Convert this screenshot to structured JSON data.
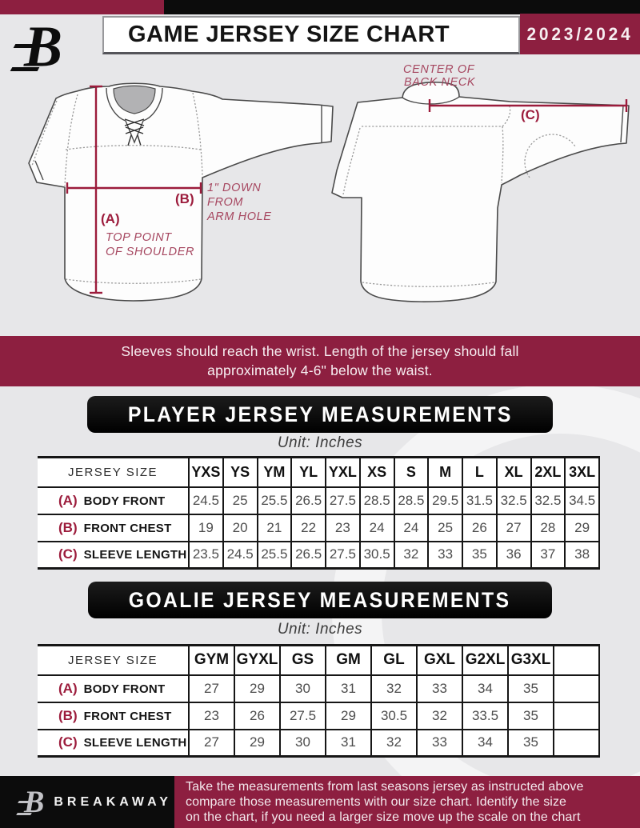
{
  "header": {
    "logo": "B",
    "title": "GAME JERSEY SIZE CHART",
    "season": "2023/2024"
  },
  "diagram": {
    "front": {
      "a_label": "(A)",
      "a_caption_1": "TOP POINT",
      "a_caption_2": "OF SHOULDER",
      "b_label": "(B)",
      "b_caption_1": "1\" DOWN",
      "b_caption_2": "FROM",
      "b_caption_3": "ARM HOLE"
    },
    "back": {
      "c_label": "(C)",
      "c_caption_1": "CENTER OF",
      "c_caption_2": "BACK NECK"
    }
  },
  "banner": {
    "line1": "Sleeves should reach the wrist. Length of the jersey should fall",
    "line2": "approximately 4-6\" below the waist."
  },
  "player_section": {
    "title": "PLAYER JERSEY MEASUREMENTS",
    "unit": "Unit: Inches",
    "table": {
      "corner": "JERSEY SIZE",
      "sizes": [
        "YXS",
        "YS",
        "YM",
        "YL",
        "YXL",
        "XS",
        "S",
        "M",
        "L",
        "XL",
        "2XL",
        "3XL"
      ],
      "rows": [
        {
          "key": "(A)",
          "label": "BODY FRONT",
          "values": [
            "24.5",
            "25",
            "25.5",
            "26.5",
            "27.5",
            "28.5",
            "28.5",
            "29.5",
            "31.5",
            "32.5",
            "32.5",
            "34.5"
          ]
        },
        {
          "key": "(B)",
          "label": "FRONT CHEST",
          "values": [
            "19",
            "20",
            "21",
            "22",
            "23",
            "24",
            "24",
            "25",
            "26",
            "27",
            "28",
            "29"
          ]
        },
        {
          "key": "(C)",
          "label": "SLEEVE LENGTH",
          "values": [
            "23.5",
            "24.5",
            "25.5",
            "26.5",
            "27.5",
            "30.5",
            "32",
            "33",
            "35",
            "36",
            "37",
            "38"
          ]
        }
      ]
    }
  },
  "goalie_section": {
    "title": "GOALIE JERSEY MEASUREMENTS",
    "unit": "Unit: Inches",
    "table": {
      "corner": "JERSEY SIZE",
      "sizes": [
        "GYM",
        "GYXL",
        "GS",
        "GM",
        "GL",
        "GXL",
        "G2XL",
        "G3XL",
        ""
      ],
      "rows": [
        {
          "key": "(A)",
          "label": "BODY FRONT",
          "values": [
            "27",
            "29",
            "30",
            "31",
            "32",
            "33",
            "34",
            "35",
            ""
          ]
        },
        {
          "key": "(B)",
          "label": "FRONT CHEST",
          "values": [
            "23",
            "26",
            "27.5",
            "29",
            "30.5",
            "32",
            "33.5",
            "35",
            ""
          ]
        },
        {
          "key": "(C)",
          "label": "SLEEVE LENGTH",
          "values": [
            "27",
            "29",
            "30",
            "31",
            "32",
            "33",
            "34",
            "35",
            ""
          ]
        }
      ]
    }
  },
  "footer": {
    "logo": "B",
    "wordmark": "BREAKAWAY",
    "lines": [
      "Take the measurements from last seasons jersey as instructed above",
      "compare those measurements  with our size chart. Identify the size",
      "on the chart, if you need a larger size move up the scale on the chart"
    ]
  },
  "colors": {
    "maroon": "#8d1f40",
    "black": "#0c0c0c",
    "measure": "#9c1c3c"
  }
}
